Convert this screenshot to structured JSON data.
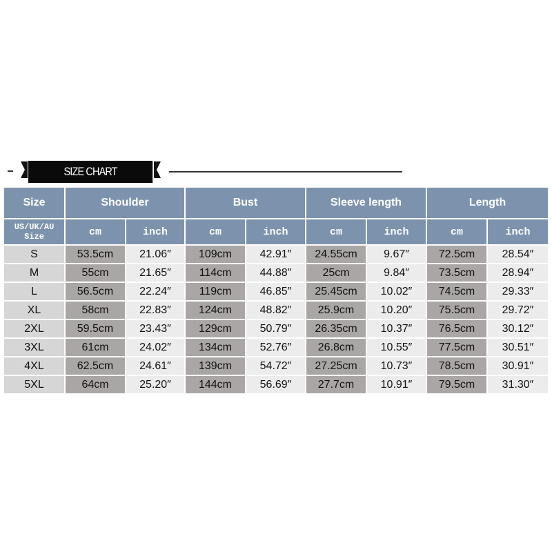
{
  "banner": {
    "title": "SIZE CHART"
  },
  "header": {
    "size": "Size",
    "groups": [
      "Shoulder",
      "Bust",
      "Sleeve length",
      "Length"
    ],
    "size_sub": "US/UK/AU Size",
    "cm": "cm",
    "inch": "inch"
  },
  "rows": [
    {
      "size": "S",
      "v": [
        "53.5cm",
        "21.06″",
        "109cm",
        "42.91″",
        "24.55cm",
        "9.67″",
        "72.5cm",
        "28.54″"
      ]
    },
    {
      "size": "M",
      "v": [
        "55cm",
        "21.65″",
        "114cm",
        "44.88″",
        "25cm",
        "9.84″",
        "73.5cm",
        "28.94″"
      ]
    },
    {
      "size": "L",
      "v": [
        "56.5cm",
        "22.24″",
        "119cm",
        "46.85″",
        "25.45cm",
        "10.02″",
        "74.5cm",
        "29.33″"
      ]
    },
    {
      "size": "XL",
      "v": [
        "58cm",
        "22.83″",
        "124cm",
        "48.82″",
        "25.9cm",
        "10.20″",
        "75.5cm",
        "29.72″"
      ]
    },
    {
      "size": "2XL",
      "v": [
        "59.5cm",
        "23.43″",
        "129cm",
        "50.79″",
        "26.35cm",
        "10.37″",
        "76.5cm",
        "30.12″"
      ]
    },
    {
      "size": "3XL",
      "v": [
        "61cm",
        "24.02″",
        "134cm",
        "52.76″",
        "26.8cm",
        "10.55″",
        "77.5cm",
        "30.51″"
      ]
    },
    {
      "size": "4XL",
      "v": [
        "62.5cm",
        "24.61″",
        "139cm",
        "54.72″",
        "27.25cm",
        "10.73″",
        "78.5cm",
        "30.91″"
      ]
    },
    {
      "size": "5XL",
      "v": [
        "64cm",
        "25.20″",
        "144cm",
        "56.69″",
        "27.7cm",
        "10.91″",
        "79.5cm",
        "31.30″"
      ]
    }
  ]
}
